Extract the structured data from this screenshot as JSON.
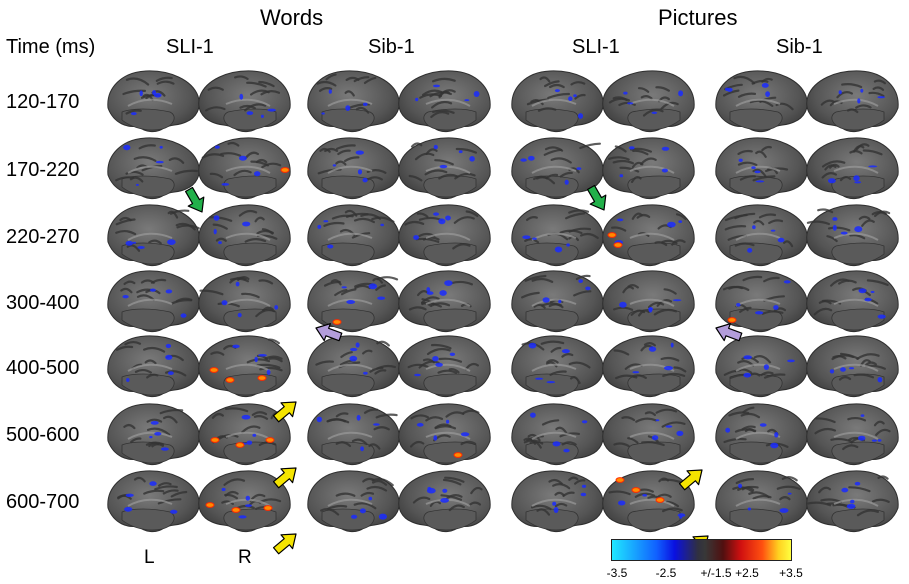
{
  "conditions": [
    {
      "label": "Words",
      "subjects": [
        "SLI-1",
        "Sib-1"
      ]
    },
    {
      "label": "Pictures",
      "subjects": [
        "SLI-1",
        "Sib-1"
      ]
    }
  ],
  "time_header": "Time (ms)",
  "time_windows": [
    "120-170",
    "170-220",
    "220-270",
    "300-400",
    "400-500",
    "500-600",
    "600-700"
  ],
  "hemisphere_labels": {
    "left": "L",
    "right": "R"
  },
  "colorbar": {
    "ticks": [
      "-3.5",
      "-2.5",
      "+/-1.5",
      "+2.5",
      "+3.5"
    ],
    "colors": [
      "#20e8ff",
      "#1060ff",
      "#383838",
      "#d01010",
      "#ffff40"
    ]
  },
  "arrows": [
    {
      "color": "#22b04a",
      "time_window": "220-270",
      "panel": "Words SLI-1"
    },
    {
      "color": "#22b04a",
      "time_window": "220-270",
      "panel": "Pictures SLI-1"
    },
    {
      "color": "#b39ddb",
      "time_window": "300-400",
      "panel": "Words Sib-1"
    },
    {
      "color": "#b39ddb",
      "time_window": "300-400",
      "panel": "Pictures Sib-1"
    },
    {
      "color": "#f5e400",
      "time_window": "400-500",
      "panel": "Words SLI-1"
    },
    {
      "color": "#f5e400",
      "time_window": "500-600",
      "panel": "Words SLI-1"
    },
    {
      "color": "#f5e400",
      "time_window": "600-700",
      "panel": "Words SLI-1"
    },
    {
      "color": "#f5e400",
      "time_window": "500-600",
      "panel": "Pictures SLI-1"
    },
    {
      "color": "#f5e400",
      "time_window": "600-700",
      "panel": "Pictures SLI-1"
    }
  ]
}
